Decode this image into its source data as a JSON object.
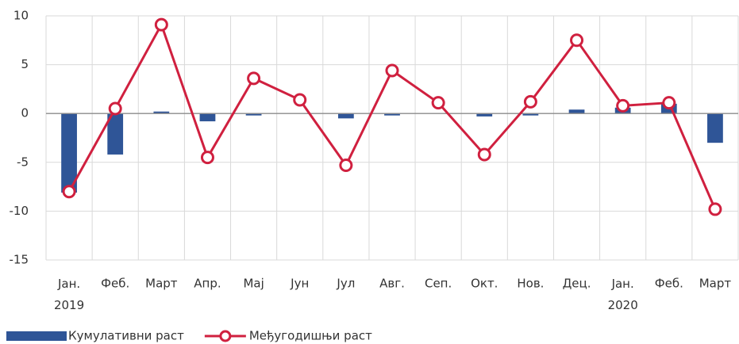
{
  "chart_data": {
    "type": "bar_line",
    "categories": [
      "Јан. 2019",
      "Феб.",
      "Март",
      "Апр.",
      "Мај",
      "Јун",
      "Јул",
      "Авг.",
      "Сеп.",
      "Окт.",
      "Нов.",
      "Дец.",
      "Јан. 2020",
      "Феб.",
      "Март"
    ],
    "series": [
      {
        "name": "Кумулативни раст",
        "type": "bar",
        "color": "#2f5597",
        "values": [
          -8.1,
          -4.2,
          0.2,
          -0.8,
          -0.2,
          0,
          -0.5,
          -0.2,
          0,
          -0.3,
          -0.2,
          0.4,
          0.6,
          1.0,
          -3.0
        ]
      },
      {
        "name": "Међугодишњи раст",
        "type": "line",
        "color": "#d0203f",
        "values": [
          -8.0,
          0.5,
          9.1,
          -4.5,
          3.6,
          1.4,
          -5.3,
          4.4,
          1.1,
          -4.2,
          1.2,
          7.5,
          0.8,
          1.1,
          -9.8
        ]
      }
    ],
    "ylim": [
      -15,
      10
    ],
    "yticks": [
      -15,
      -10,
      -5,
      0,
      5,
      10
    ],
    "grid": true,
    "legend": "bottom-left"
  }
}
